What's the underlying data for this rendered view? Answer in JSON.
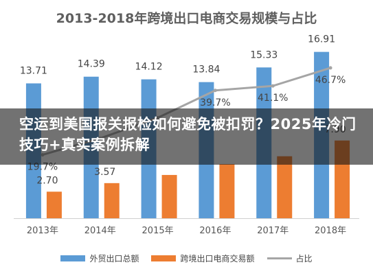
{
  "chart_data": {
    "type": "bar",
    "title": "2013-2018年跨境出口电商交易规模与占比",
    "categories": [
      "2013年",
      "2014年",
      "2015年",
      "2016年",
      "2017年",
      "2018年"
    ],
    "series": [
      {
        "name": "外贸出口总额",
        "values": [
          13.71,
          14.39,
          14.12,
          13.84,
          15.33,
          16.91
        ],
        "labels": [
          "13.71",
          "14.39",
          "14.12",
          "13.84",
          "15.33",
          "16.91"
        ],
        "color": "#5b9bd5"
      },
      {
        "name": "跨境出口电商交易额",
        "values": [
          2.7,
          3.57,
          4.4,
          5.5,
          6.3,
          7.9
        ],
        "labels": [
          "2.70",
          "3.57",
          "",
          "",
          "",
          "7.90"
        ],
        "color": "#ed7d31"
      },
      {
        "name": "占比",
        "type": "line",
        "values": [
          19.7,
          24.8,
          31.2,
          39.7,
          41.1,
          46.7
        ],
        "labels": [
          "19.7%",
          "",
          "",
          "39.7%",
          "41.1%",
          "46.7%"
        ],
        "color": "#a5a5a5"
      }
    ],
    "ylim": [
      0,
      18
    ],
    "line_ylim": [
      0,
      55
    ],
    "grid": false,
    "legend": "bottom"
  },
  "overlay": {
    "text": "空运到美国报关报检如何避免被扣罚？2025年冷门技巧+真实案例拆解"
  }
}
